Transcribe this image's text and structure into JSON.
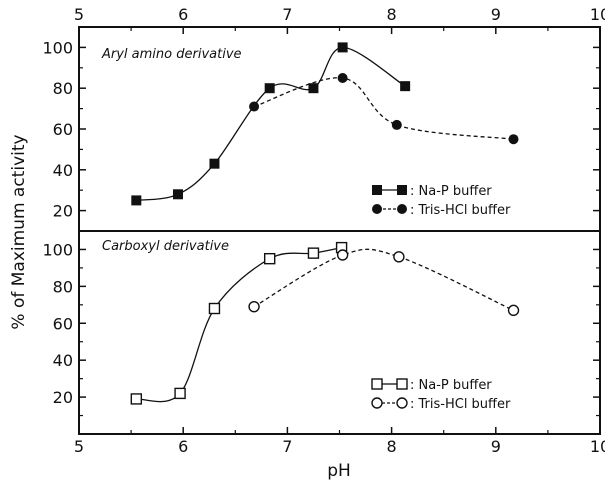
{
  "chart_data": [
    {
      "type": "line",
      "panel": "top",
      "title": "Aryl amino derivative",
      "xlabel": "pH",
      "ylabel": "% of Maximum activity",
      "xlim": [
        5,
        10
      ],
      "ylim": [
        10,
        110
      ],
      "x_ticks": [
        "5",
        "6",
        "7",
        "8",
        "9",
        "10"
      ],
      "y_ticks": [
        "20",
        "40",
        "60",
        "80",
        "100"
      ],
      "grid": false,
      "legend_position": "lower-right",
      "series": [
        {
          "name": "Na-P buffer",
          "marker": "filled-square",
          "line_style": "solid",
          "x": [
            5.55,
            5.95,
            6.3,
            6.83,
            7.25,
            7.53,
            8.13
          ],
          "y": [
            25,
            28,
            43,
            80,
            80,
            100,
            81
          ]
        },
        {
          "name": "Tris-HCl buffer",
          "marker": "filled-circle",
          "line_style": "dashed",
          "x": [
            6.68,
            7.53,
            8.05,
            9.17
          ],
          "y": [
            71,
            85,
            62,
            55
          ]
        }
      ],
      "legend_labels": [
        ": Na-P buffer",
        ": Tris-HCl buffer"
      ]
    },
    {
      "type": "line",
      "panel": "bottom",
      "title": "Carboxyl derivative",
      "xlabel": "pH",
      "ylabel": "% of Maximum activity",
      "xlim": [
        5,
        10
      ],
      "ylim": [
        0,
        110
      ],
      "x_ticks": [
        "5",
        "6",
        "7",
        "8",
        "9",
        "10"
      ],
      "y_ticks": [
        "20",
        "40",
        "60",
        "80",
        "100"
      ],
      "grid": false,
      "legend_position": "lower-right",
      "series": [
        {
          "name": "Na-P buffer",
          "marker": "open-square",
          "line_style": "solid",
          "x": [
            5.55,
            5.97,
            6.3,
            6.83,
            7.25,
            7.52
          ],
          "y": [
            19,
            22,
            68,
            95,
            98,
            101
          ]
        },
        {
          "name": "Tris-HCl buffer",
          "marker": "open-circle",
          "line_style": "dashed",
          "x": [
            6.68,
            7.53,
            8.07,
            9.17
          ],
          "y": [
            69,
            97,
            96,
            67
          ]
        }
      ],
      "legend_labels": [
        ": Na-P buffer",
        ": Tris-HCl buffer"
      ]
    }
  ],
  "axes": {
    "top_x_ticks": [
      "5",
      "6",
      "7",
      "8",
      "9",
      "10"
    ],
    "bottom_x_ticks": [
      "5",
      "6",
      "7",
      "8",
      "9",
      "10"
    ],
    "xlabel": "pH",
    "ylabel": "% of Maximum activity"
  },
  "colors": {
    "ink": "#111111",
    "background": "#ffffff"
  }
}
